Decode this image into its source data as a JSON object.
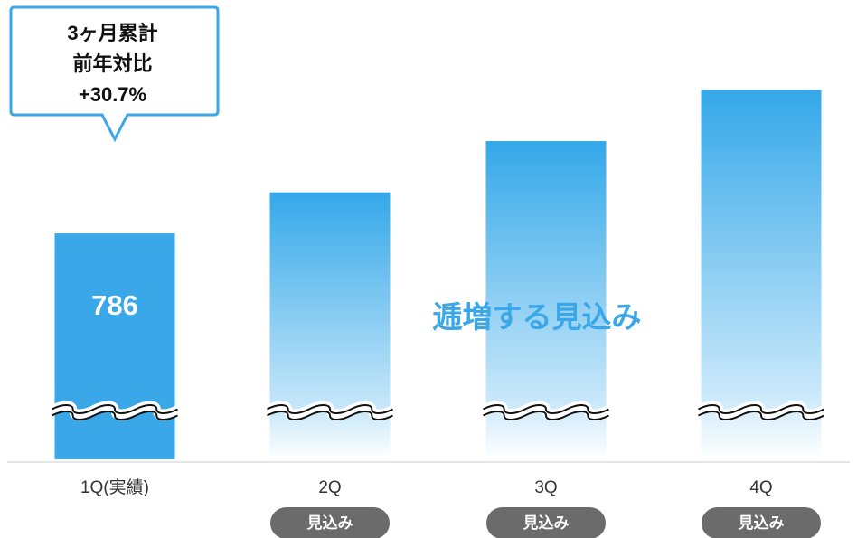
{
  "chart_data": {
    "type": "bar",
    "categories": [
      "1Q(実績)",
      "2Q",
      "3Q",
      "4Q"
    ],
    "values": [
      786,
      806,
      831,
      856
    ],
    "bar_styles": [
      "solid",
      "gradient",
      "gradient",
      "gradient"
    ],
    "data_labels": [
      "786",
      "",
      "",
      ""
    ],
    "axis_break": true,
    "ylim": [
      700,
      880
    ],
    "title": "",
    "xlabel": "",
    "ylabel": "",
    "grid": false,
    "legend": "none",
    "annotations": {
      "callout": {
        "category": "1Q(実績)",
        "lines": [
          "3ヶ月累計",
          "前年対比",
          "+30.7%"
        ]
      },
      "trend_text": "逓増する見込み",
      "forecast_badges": [
        {
          "category": "2Q",
          "label": "見込み"
        },
        {
          "category": "3Q",
          "label": "見込み"
        },
        {
          "category": "4Q",
          "label": "見込み"
        }
      ]
    }
  },
  "colors": {
    "bar_solid": "#3aa7e8",
    "bar_gradient_top": "#34a8e9",
    "bar_gradient_bottom": "#ffffff",
    "callout_border": "#3aa7e8",
    "badge_fill": "#6b6b6b",
    "baseline": "#cccccc",
    "trend_text": "#3aa7e8"
  }
}
